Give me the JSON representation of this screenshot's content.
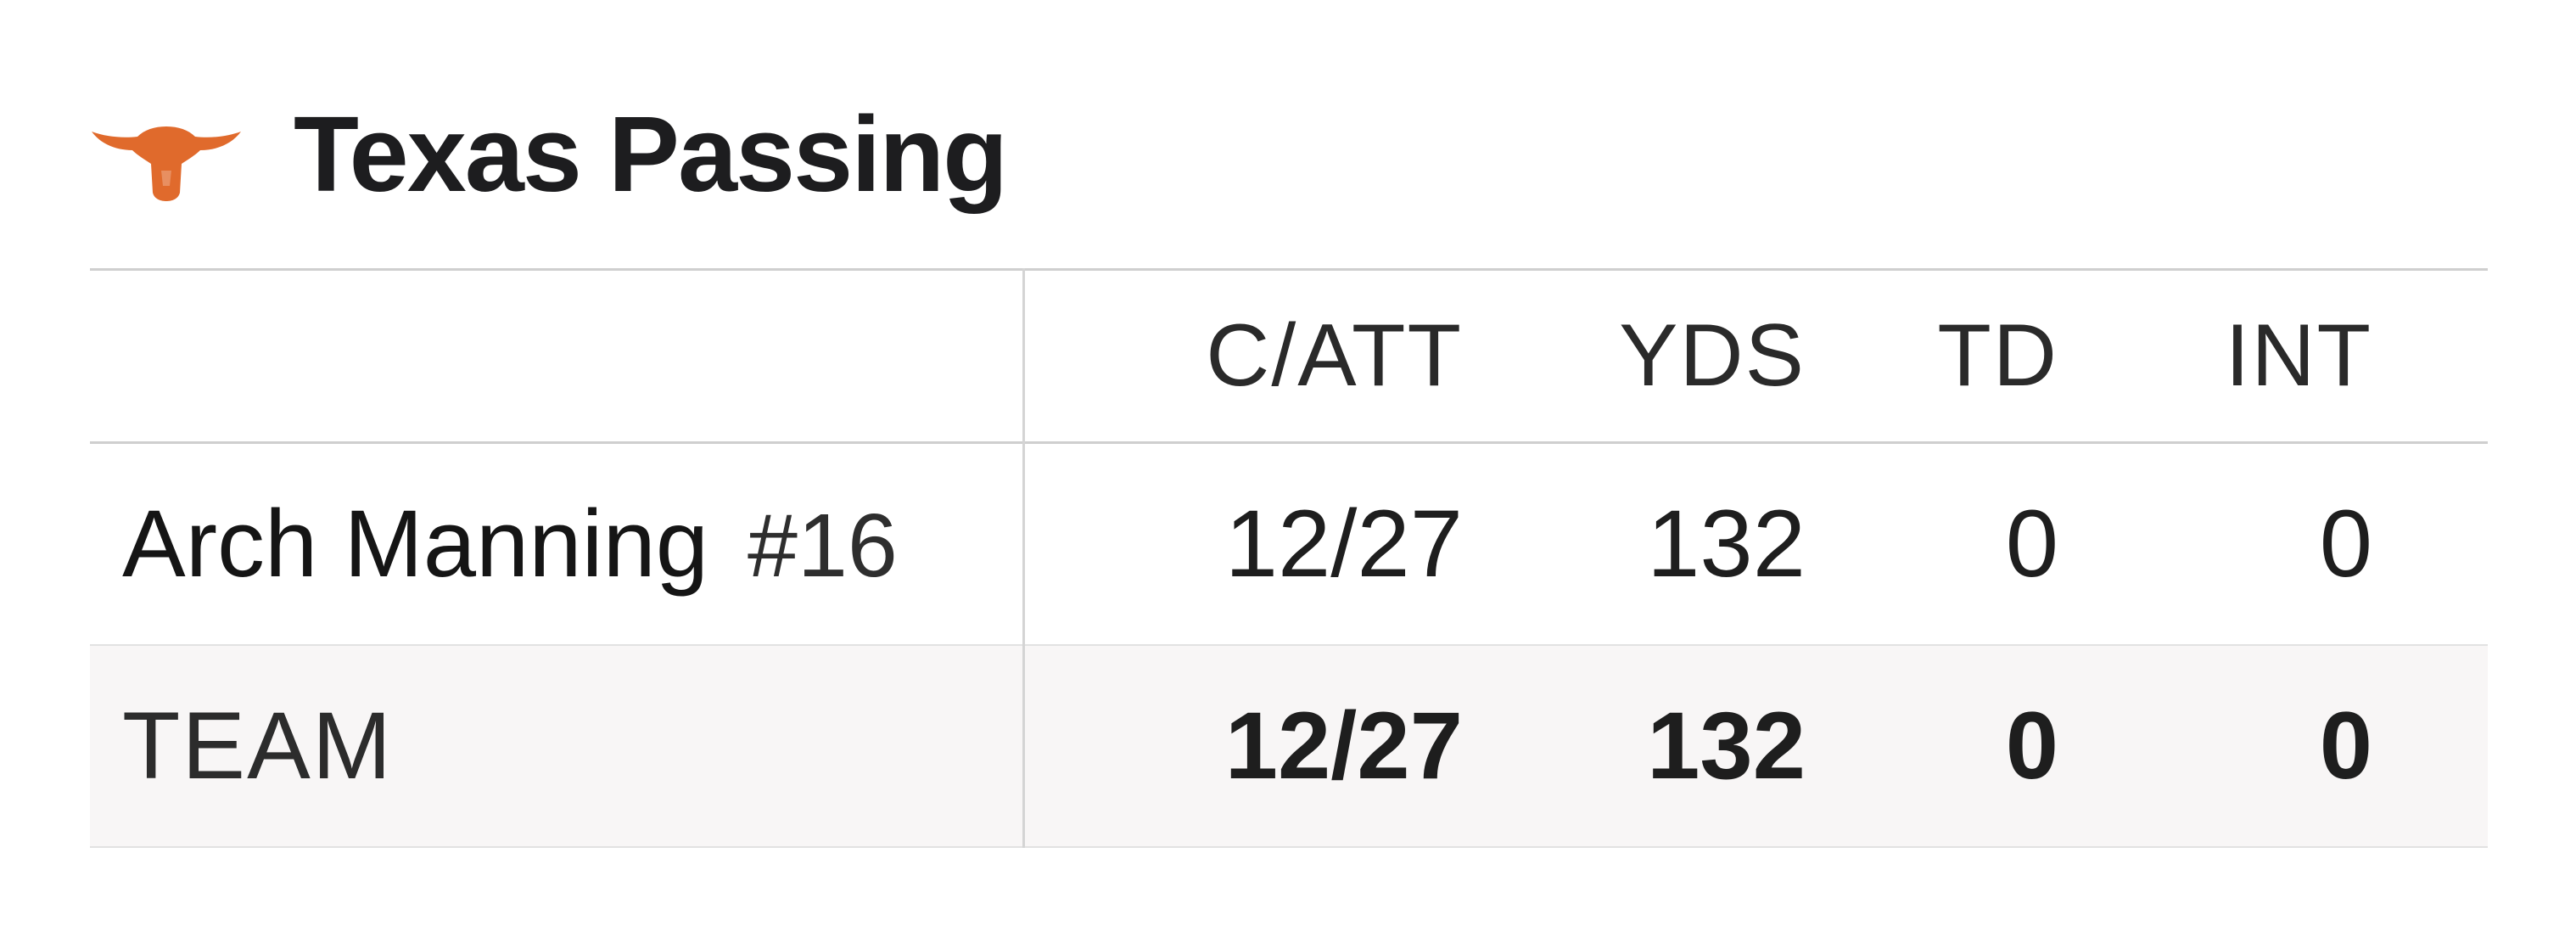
{
  "header": {
    "title": "Texas Passing",
    "logo_icon": "longhorn-icon",
    "logo_color": "#e06a2c"
  },
  "table": {
    "columns": [
      "C/ATT",
      "YDS",
      "TD",
      "INT"
    ],
    "rows": [
      {
        "name": "Arch Manning",
        "number": "#16",
        "c_att": "12/27",
        "yds": "132",
        "td": "0",
        "int": "0"
      }
    ],
    "team": {
      "label": "TEAM",
      "c_att": "12/27",
      "yds": "132",
      "td": "0",
      "int": "0"
    }
  }
}
